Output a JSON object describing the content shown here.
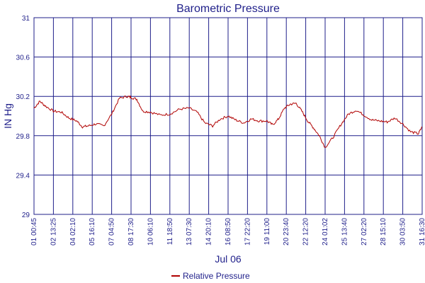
{
  "chart_data": {
    "type": "line",
    "title": "Barometric Pressure",
    "xlabel": "Jul 06",
    "ylabel": "IN Hg",
    "ylim": [
      29,
      31
    ],
    "yticks": [
      "31",
      "30.6",
      "30.2",
      "29.8",
      "29.4",
      "29"
    ],
    "grid": true,
    "legend_position": "bottom",
    "x_tick_labels": [
      "01 00:45",
      "02 13:25",
      "04 02:10",
      "05 16:10",
      "07 04:50",
      "08 17:30",
      "10 06:10",
      "11 18:50",
      "13 07:30",
      "14 20:10",
      "16 08:50",
      "17 22:20",
      "19 11:00",
      "20 23:40",
      "22 12:20",
      "24 01:02",
      "25 13:40",
      "27 02:20",
      "28 15:10",
      "30 03:50",
      "31 16:30"
    ],
    "series": [
      {
        "name": "Relative Pressure",
        "color": "#b00000",
        "x_index": [
          0,
          0.3,
          0.6,
          1.0,
          1.4,
          1.8,
          2.2,
          2.5,
          2.8,
          3.2,
          3.6,
          4.0,
          4.4,
          4.8,
          5.0,
          5.3,
          5.6,
          6.0,
          6.5,
          7.0,
          7.5,
          8.0,
          8.4,
          8.8,
          9.2,
          9.6,
          10.0,
          10.4,
          10.8,
          11.2,
          11.6,
          12.0,
          12.3,
          12.6,
          12.9,
          13.2,
          13.5,
          13.8,
          14.1,
          14.4,
          14.7,
          15.0,
          15.4,
          15.8,
          16.2,
          16.6,
          17.0,
          17.4,
          17.8,
          18.2,
          18.6,
          19.0,
          19.4,
          19.8,
          20.0
        ],
        "values": [
          30.08,
          30.15,
          30.1,
          30.05,
          30.04,
          29.98,
          29.95,
          29.89,
          29.9,
          29.92,
          29.9,
          30.02,
          30.18,
          30.2,
          30.19,
          30.17,
          30.05,
          30.04,
          30.01,
          30.02,
          30.07,
          30.08,
          30.04,
          29.93,
          29.9,
          29.97,
          30.0,
          29.96,
          29.93,
          29.97,
          29.95,
          29.95,
          29.91,
          29.97,
          30.08,
          30.12,
          30.13,
          30.05,
          29.95,
          29.88,
          29.8,
          29.68,
          29.78,
          29.91,
          30.02,
          30.06,
          30.01,
          29.96,
          29.95,
          29.94,
          29.98,
          29.92,
          29.84,
          29.82,
          29.89
        ]
      }
    ]
  }
}
